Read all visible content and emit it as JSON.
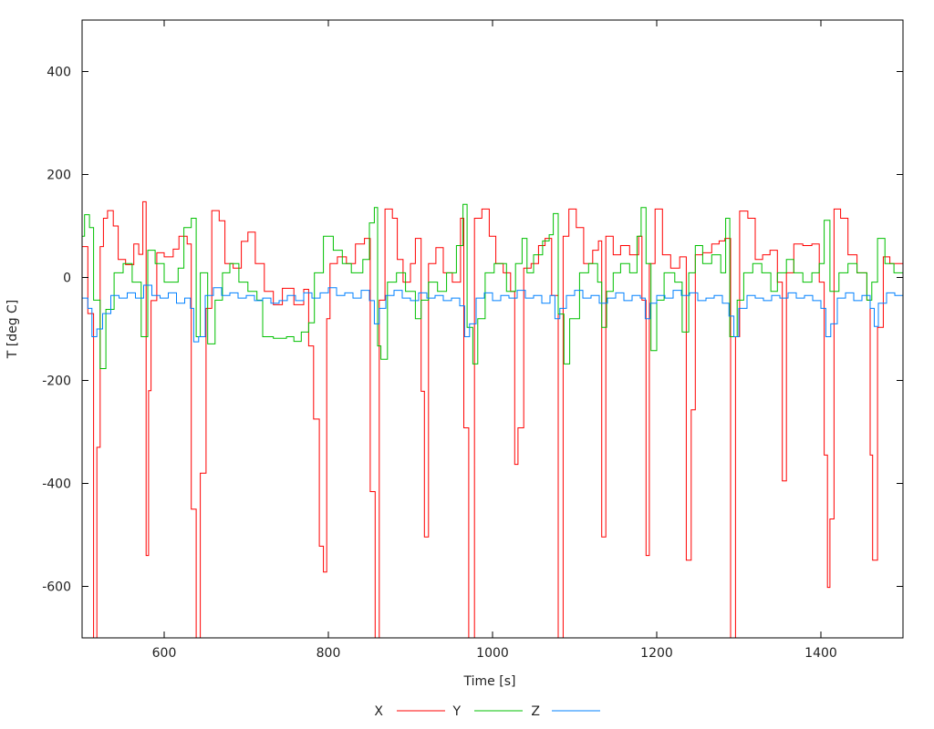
{
  "chart_data": {
    "type": "line",
    "title": "",
    "xlabel": "Time [s]",
    "ylabel": "T [deg C]",
    "xlim": [
      500,
      1500
    ],
    "ylim": [
      -700,
      500
    ],
    "xticks": [
      600,
      800,
      1000,
      1200,
      1400
    ],
    "yticks": [
      400,
      200,
      0,
      -200,
      -400,
      -600
    ],
    "grid": false,
    "legend_position": "bottom-center",
    "series": [
      {
        "name": "X",
        "color": "#ff0000",
        "x": [
          500,
          507,
          514,
          518,
          522,
          526,
          531,
          538,
          544,
          553,
          563,
          569,
          574,
          578,
          581,
          584,
          591,
          600,
          611,
          618,
          628,
          633,
          639,
          644,
          651,
          658,
          667,
          674,
          684,
          694,
          702,
          711,
          722,
          733,
          744,
          758,
          770,
          776,
          782,
          789,
          794,
          798,
          802,
          811,
          822,
          833,
          844,
          851,
          857,
          862,
          869,
          878,
          884,
          891,
          900,
          906,
          913,
          917,
          922,
          931,
          940,
          951,
          961,
          965,
          971,
          978,
          987,
          996,
          1004,
          1013,
          1022,
          1027,
          1031,
          1038,
          1047,
          1056,
          1064,
          1072,
          1080,
          1086,
          1093,
          1102,
          1111,
          1122,
          1129,
          1133,
          1138,
          1147,
          1156,
          1167,
          1178,
          1182,
          1187,
          1191,
          1198,
          1207,
          1217,
          1228,
          1236,
          1242,
          1247,
          1256,
          1267,
          1276,
          1283,
          1290,
          1296,
          1301,
          1311,
          1320,
          1329,
          1338,
          1347,
          1353,
          1358,
          1367,
          1378,
          1389,
          1398,
          1404,
          1408,
          1411,
          1416,
          1424,
          1433,
          1444,
          1456,
          1460,
          1463,
          1469,
          1476,
          1484,
          1493,
          1500
        ],
        "y": [
          60,
          -70,
          -700,
          -330,
          60,
          115,
          130,
          100,
          35,
          25,
          65,
          45,
          147,
          -540,
          -220,
          -45,
          48,
          40,
          55,
          80,
          65,
          -450,
          -700,
          -380,
          -60,
          130,
          110,
          27,
          18,
          70,
          88,
          27,
          -27,
          -53,
          -21,
          -53,
          -23,
          -133,
          -275,
          -522,
          -572,
          -80,
          27,
          40,
          27,
          65,
          76,
          -416,
          -700,
          -44,
          133,
          115,
          35,
          -9,
          27,
          76,
          -221,
          -504,
          27,
          58,
          9,
          -9,
          115,
          -292,
          -700,
          115,
          133,
          80,
          27,
          9,
          -27,
          -363,
          -292,
          18,
          27,
          62,
          76,
          -35,
          -700,
          80,
          133,
          97,
          27,
          53,
          71,
          -504,
          80,
          44,
          62,
          44,
          80,
          -44,
          -540,
          27,
          133,
          44,
          18,
          40,
          -549,
          -257,
          44,
          48,
          65,
          71,
          76,
          -700,
          -115,
          129,
          115,
          35,
          44,
          53,
          -9,
          -395,
          9,
          65,
          62,
          65,
          -9,
          -345,
          -602,
          -469,
          133,
          115,
          44,
          9,
          -44,
          -345,
          -549,
          -97,
          40,
          27,
          27,
          76
        ]
      },
      {
        "name": "Y",
        "color": "#00c000",
        "x": [
          500,
          503,
          509,
          514,
          522,
          529,
          539,
          550,
          561,
          572,
          580,
          589,
          600,
          617,
          624,
          633,
          639,
          644,
          653,
          662,
          671,
          680,
          691,
          702,
          713,
          720,
          733,
          749,
          758,
          767,
          776,
          783,
          794,
          806,
          817,
          828,
          842,
          850,
          856,
          860,
          864,
          872,
          883,
          894,
          906,
          913,
          922,
          933,
          944,
          956,
          964,
          969,
          976,
          982,
          991,
          1002,
          1017,
          1028,
          1036,
          1042,
          1050,
          1061,
          1069,
          1074,
          1080,
          1087,
          1094,
          1106,
          1117,
          1128,
          1133,
          1139,
          1147,
          1156,
          1167,
          1176,
          1181,
          1187,
          1193,
          1200,
          1209,
          1222,
          1231,
          1239,
          1247,
          1256,
          1267,
          1278,
          1284,
          1289,
          1298,
          1306,
          1317,
          1328,
          1339,
          1347,
          1358,
          1367,
          1378,
          1389,
          1398,
          1404,
          1411,
          1422,
          1433,
          1444,
          1456,
          1462,
          1469,
          1478,
          1489,
          1500
        ],
        "y": [
          80,
          122,
          97,
          -44,
          -177,
          -62,
          9,
          27,
          -9,
          -115,
          53,
          27,
          -9,
          18,
          97,
          115,
          -115,
          9,
          -129,
          -44,
          9,
          27,
          -9,
          -27,
          -44,
          -115,
          -118,
          -115,
          -124,
          -106,
          -88,
          9,
          80,
          53,
          27,
          9,
          35,
          106,
          136,
          -133,
          -159,
          -9,
          9,
          -27,
          -80,
          -44,
          -9,
          -27,
          9,
          62,
          142,
          -97,
          -168,
          -80,
          9,
          27,
          -27,
          27,
          76,
          9,
          44,
          71,
          83,
          124,
          -71,
          -168,
          -80,
          9,
          27,
          -9,
          -97,
          -27,
          9,
          27,
          9,
          80,
          136,
          27,
          -142,
          -44,
          9,
          -9,
          -106,
          9,
          62,
          27,
          44,
          9,
          115,
          -115,
          -44,
          9,
          27,
          9,
          -27,
          9,
          35,
          9,
          -9,
          9,
          27,
          111,
          -27,
          9,
          27,
          9,
          -44,
          -9,
          76,
          27,
          9,
          -18
        ]
      },
      {
        "name": "Z",
        "color": "#0080ff",
        "x": [
          500,
          507,
          512,
          518,
          525,
          535,
          545,
          555,
          565,
          575,
          585,
          595,
          605,
          615,
          625,
          632,
          636,
          642,
          650,
          660,
          670,
          680,
          690,
          700,
          710,
          720,
          730,
          740,
          750,
          760,
          770,
          780,
          790,
          800,
          810,
          820,
          830,
          840,
          850,
          856,
          862,
          870,
          880,
          890,
          900,
          910,
          920,
          930,
          940,
          950,
          960,
          966,
          972,
          980,
          990,
          1000,
          1010,
          1020,
          1030,
          1040,
          1050,
          1060,
          1070,
          1076,
          1082,
          1090,
          1100,
          1110,
          1120,
          1130,
          1140,
          1150,
          1160,
          1170,
          1180,
          1186,
          1192,
          1200,
          1210,
          1220,
          1230,
          1240,
          1250,
          1260,
          1270,
          1280,
          1288,
          1294,
          1300,
          1310,
          1320,
          1330,
          1340,
          1350,
          1360,
          1370,
          1380,
          1390,
          1400,
          1406,
          1412,
          1420,
          1430,
          1440,
          1450,
          1460,
          1465,
          1470,
          1480,
          1490,
          1500
        ],
        "y": [
          -40,
          -60,
          -115,
          -100,
          -70,
          -35,
          -40,
          -30,
          -40,
          -15,
          -35,
          -40,
          -30,
          -50,
          -40,
          -60,
          -125,
          -115,
          -35,
          -20,
          -35,
          -30,
          -40,
          -35,
          -45,
          -40,
          -50,
          -45,
          -35,
          -45,
          -30,
          -40,
          -30,
          -20,
          -35,
          -30,
          -40,
          -25,
          -45,
          -90,
          -60,
          -35,
          -25,
          -40,
          -45,
          -30,
          -40,
          -35,
          -45,
          -40,
          -55,
          -115,
          -90,
          -40,
          -30,
          -45,
          -35,
          -40,
          -25,
          -40,
          -35,
          -50,
          -35,
          -80,
          -60,
          -35,
          -25,
          -40,
          -35,
          -50,
          -40,
          -30,
          -45,
          -35,
          -40,
          -80,
          -50,
          -35,
          -40,
          -25,
          -35,
          -30,
          -45,
          -40,
          -35,
          -50,
          -75,
          -115,
          -60,
          -35,
          -40,
          -45,
          -35,
          -40,
          -30,
          -40,
          -35,
          -45,
          -60,
          -115,
          -90,
          -40,
          -30,
          -45,
          -35,
          -60,
          -95,
          -50,
          -30,
          -35,
          -25
        ]
      }
    ]
  }
}
